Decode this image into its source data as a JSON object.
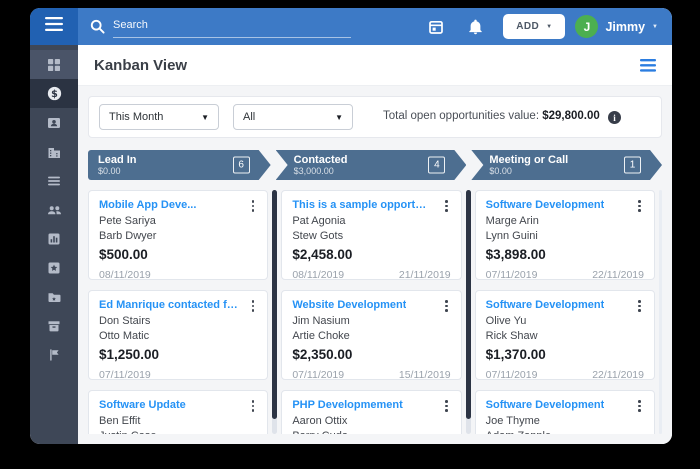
{
  "topbar": {
    "search_placeholder": "Search",
    "add_button": "ADD",
    "user": {
      "initial": "J",
      "name": "Jimmy"
    }
  },
  "page": {
    "title": "Kanban View"
  },
  "filters": {
    "period": "This Month",
    "owner": "All",
    "total_label": "Total open opportunities value:",
    "total_value": "$29,800.00"
  },
  "sidebar": {
    "items": [
      {
        "icon": "grid-icon",
        "state": "highlight"
      },
      {
        "icon": "dollar-icon",
        "state": "active"
      },
      {
        "icon": "contact-card-icon",
        "state": ""
      },
      {
        "icon": "building-icon",
        "state": ""
      },
      {
        "icon": "list-icon",
        "state": ""
      },
      {
        "icon": "group-icon",
        "state": ""
      },
      {
        "icon": "chart-box-icon",
        "state": ""
      },
      {
        "icon": "star-box-icon",
        "state": ""
      },
      {
        "icon": "folder-icon",
        "state": ""
      },
      {
        "icon": "archive-icon",
        "state": ""
      },
      {
        "icon": "flag-icon",
        "state": ""
      }
    ]
  },
  "pipeline": [
    {
      "name": "Lead In",
      "value": "$0.00",
      "count": "6"
    },
    {
      "name": "Contacted",
      "value": "$3,000.00",
      "count": "4"
    },
    {
      "name": "Meeting or Call",
      "value": "$0.00",
      "count": "1"
    }
  ],
  "columns": [
    {
      "stage": "Lead In",
      "cards": [
        {
          "title": "Mobile App Deve...",
          "contact": "Pete Sariya",
          "company": "Barb Dwyer",
          "amount": "$500.00",
          "date_start": "08/11/2019",
          "date_end": ""
        },
        {
          "title": "Ed Manrique contacted fro...",
          "contact": "Don Stairs",
          "company": "Otto Matic",
          "amount": "$1,250.00",
          "date_start": "07/11/2019",
          "date_end": ""
        },
        {
          "title": "Software Update",
          "contact": "Ben Effit",
          "company": "Justin Case",
          "amount": "",
          "date_start": "",
          "date_end": ""
        }
      ]
    },
    {
      "stage": "Contacted",
      "cards": [
        {
          "title": "This is a sample opportun...",
          "contact": "Pat Agonia",
          "company": "Stew Gots",
          "amount": "$2,458.00",
          "date_start": "08/11/2019",
          "date_end": "21/11/2019"
        },
        {
          "title": "Website Development",
          "contact": "Jim Nasium",
          "company": "Artie Choke",
          "amount": "$2,350.00",
          "date_start": "07/11/2019",
          "date_end": "15/11/2019"
        },
        {
          "title": "PHP Developmement",
          "contact": "Aaron Ottix",
          "company": "Barry Cuda",
          "amount": "",
          "date_start": "",
          "date_end": ""
        }
      ]
    },
    {
      "stage": "Meeting or Call",
      "cards": [
        {
          "title": "Software Development",
          "contact": "Marge Arin",
          "company": "Lynn Guini",
          "amount": "$3,898.00",
          "date_start": "07/11/2019",
          "date_end": "22/11/2019"
        },
        {
          "title": "Software Development",
          "contact": "Olive Yu",
          "company": "Rick Shaw",
          "amount": "$1,370.00",
          "date_start": "07/11/2019",
          "date_end": "22/11/2019"
        },
        {
          "title": "Software Development",
          "contact": "Joe Thyme",
          "company": "Adam Zapple",
          "amount": "",
          "date_start": "",
          "date_end": ""
        }
      ]
    }
  ],
  "colors": {
    "topbar_blue": "#3d7ac6",
    "menu_square_blue": "#2161b2",
    "sidebar_navy": "#3e4757",
    "sidebar_active": "#2b3342",
    "accent_blue": "#2592f5",
    "pipeline_slate": "#4d6e90",
    "avatar_green": "#4caf50"
  }
}
